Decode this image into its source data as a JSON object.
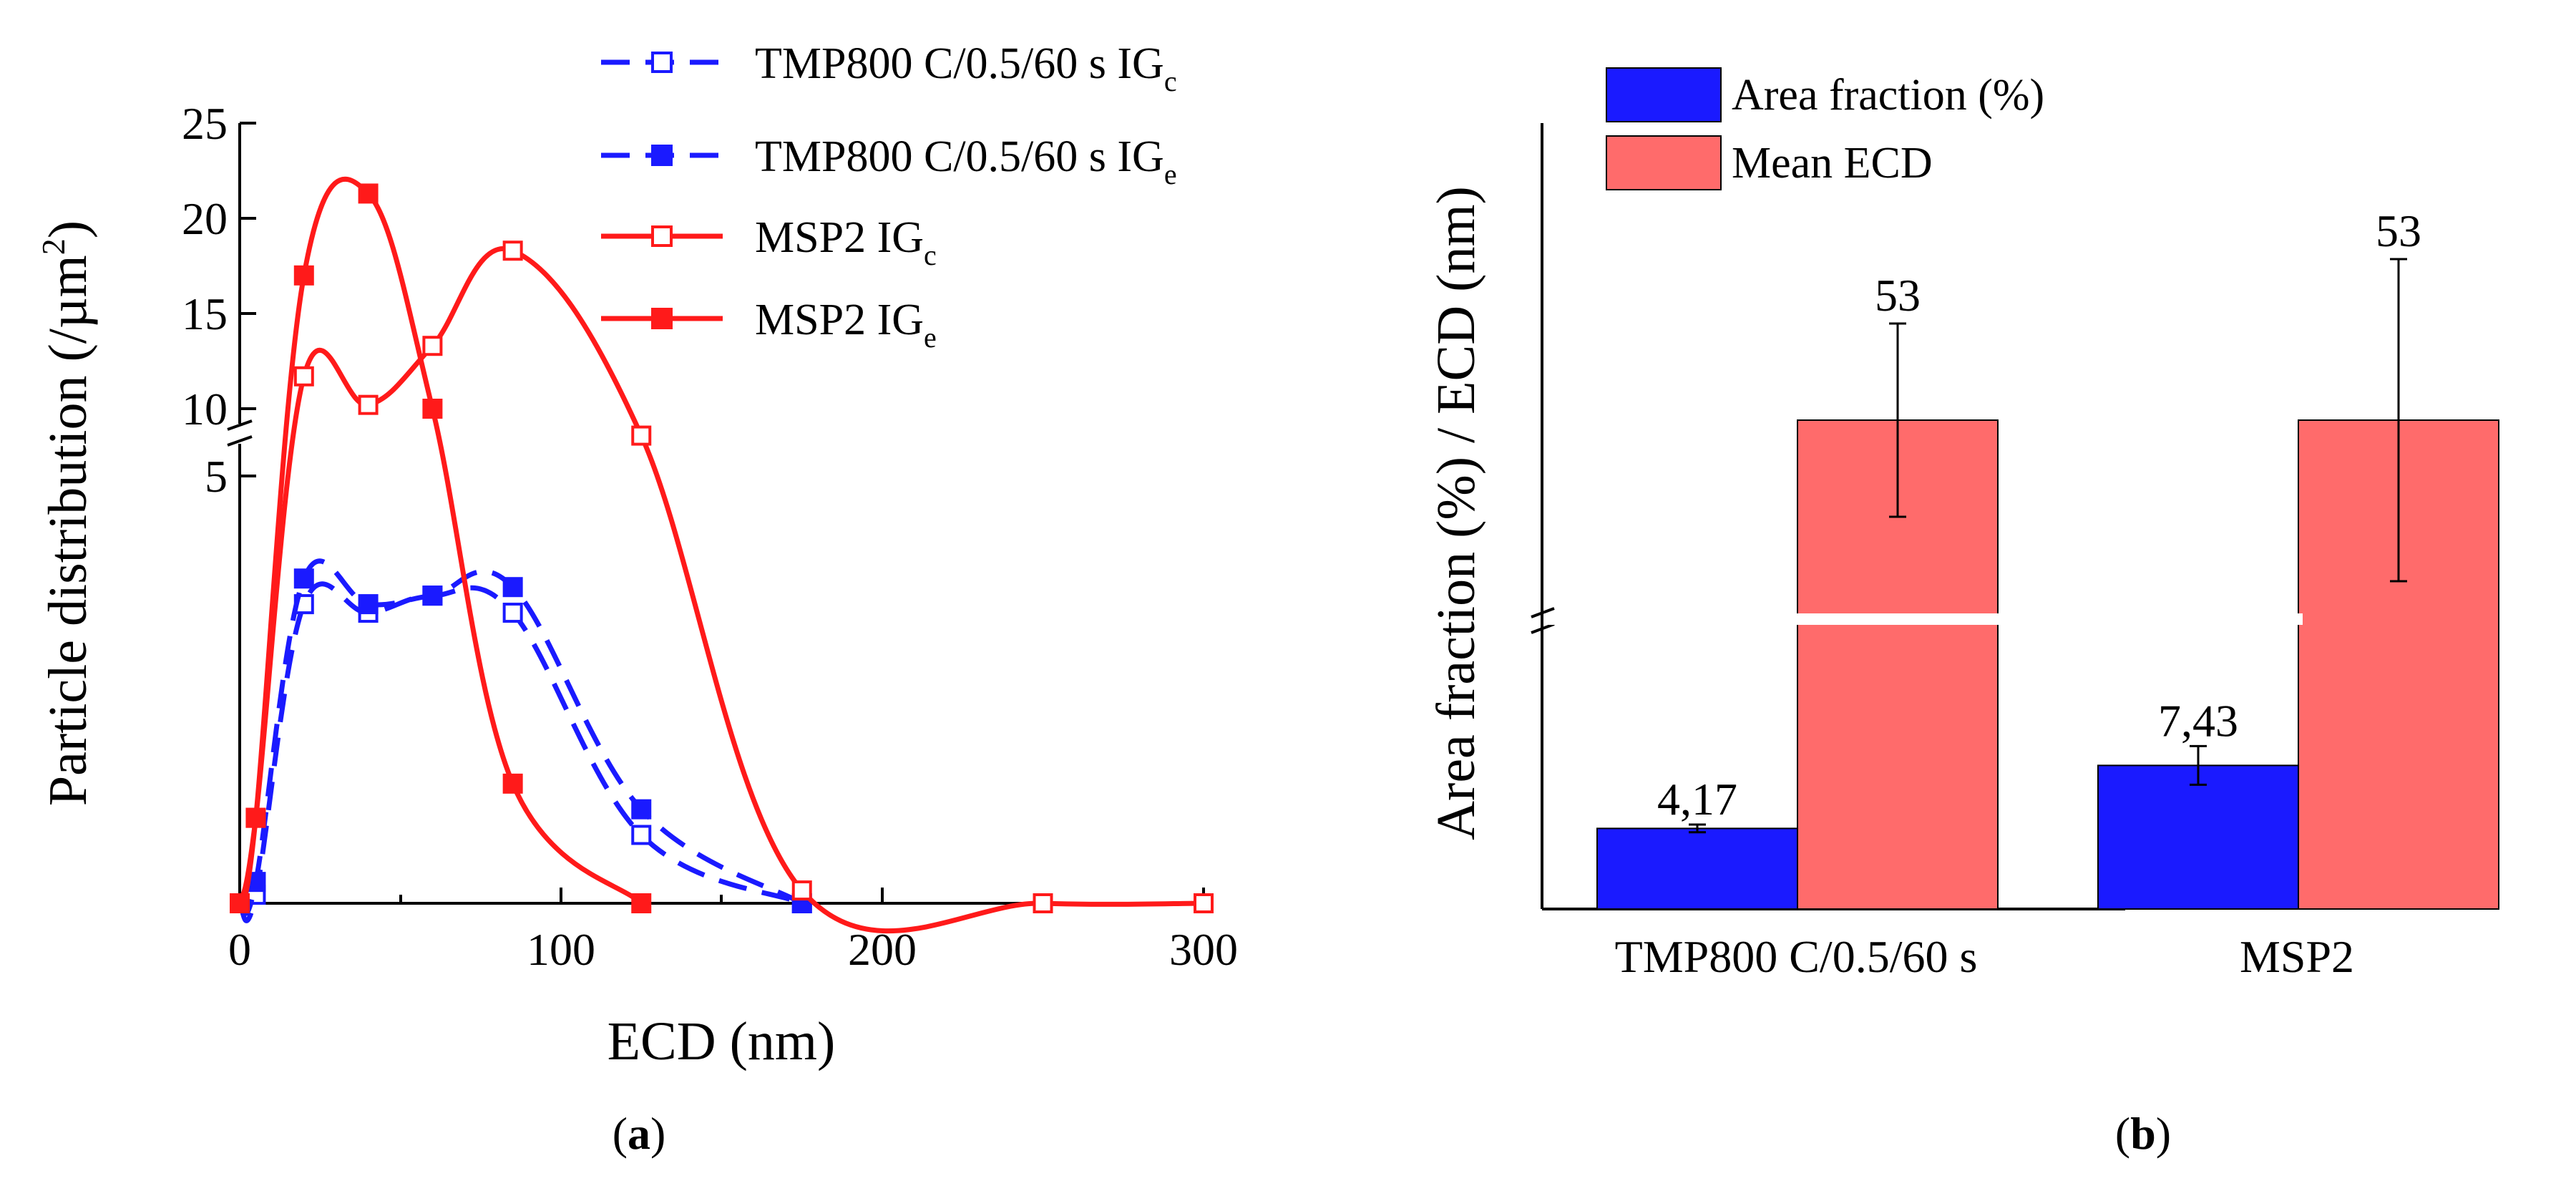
{
  "chart_data": [
    {
      "type": "line",
      "panel": "a",
      "panel_label": "a",
      "xlabel": "ECD (nm)",
      "ylabel": "Particle distribution (/µm²)",
      "ylabel_main": "Particle distribution (/µm",
      "ylabel_sup": "2",
      "ylabel_close": ")",
      "xlim": [
        0,
        300
      ],
      "x_ticks": [
        "0",
        "100",
        "200",
        "300"
      ],
      "y_ticks_upper": [
        "10",
        "15",
        "20",
        "25"
      ],
      "y_ticks_lower": [
        "5"
      ],
      "y_break": "broken axis between 5 and 10 (lower segment 0-5, upper segment 10-25)",
      "series": [
        {
          "name": "TMP800 C/0.5/60 s IGc",
          "label_main": "TMP800 C/0.5/60 s IG",
          "label_sub": "c",
          "color": "#1a1aff",
          "dash": true,
          "marker": "open-square",
          "x": [
            0,
            5,
            20,
            40,
            60,
            85,
            125,
            175
          ],
          "y": [
            0,
            0.1,
            3.5,
            3.4,
            3.6,
            3.4,
            0.8,
            0
          ]
        },
        {
          "name": "TMP800 C/0.5/60 s IGe",
          "label_main": "TMP800 C/0.5/60 s IG",
          "label_sub": "e",
          "color": "#1a1aff",
          "dash": true,
          "marker": "filled-square",
          "x": [
            0,
            5,
            20,
            40,
            60,
            85,
            125,
            175
          ],
          "y": [
            0,
            0.25,
            3.8,
            3.5,
            3.6,
            3.7,
            1.1,
            0
          ]
        },
        {
          "name": "MSP2 IGc",
          "label_main": "MSP2 IG",
          "label_sub": "c",
          "color": "#ff1a1a",
          "dash": false,
          "marker": "open-square",
          "x": [
            0,
            5,
            20,
            40,
            60,
            85,
            125,
            175,
            250,
            300
          ],
          "y": [
            0,
            1,
            11.7,
            10.2,
            13.3,
            18.3,
            8,
            0.15,
            0,
            0
          ]
        },
        {
          "name": "MSP2 IGe",
          "label_main": "MSP2 IG",
          "label_sub": "e",
          "color": "#ff1a1a",
          "dash": false,
          "marker": "filled-square",
          "x": [
            0,
            5,
            20,
            40,
            60,
            85,
            125
          ],
          "y": [
            0,
            1,
            17,
            21.3,
            10,
            1.4,
            0
          ]
        }
      ]
    },
    {
      "type": "bar",
      "panel": "b",
      "panel_label": "b",
      "ylabel": "Area fraction (%) / ECD (nm)",
      "categories": [
        "TMP800 C/0.5/60 s",
        "MSP2"
      ],
      "y_break": "broken axis",
      "series": [
        {
          "name": "Area fraction (%)",
          "color": "#1a1aff",
          "values": [
            4.17,
            7.43
          ],
          "value_labels": [
            "4,17",
            "7,43"
          ],
          "errors": [
            0.2,
            1.0
          ]
        },
        {
          "name": "Mean ECD",
          "color": "#ff6b6b",
          "values": [
            53,
            53
          ],
          "value_labels": [
            "53",
            "53"
          ],
          "errors": [
            6,
            10
          ]
        }
      ]
    }
  ]
}
